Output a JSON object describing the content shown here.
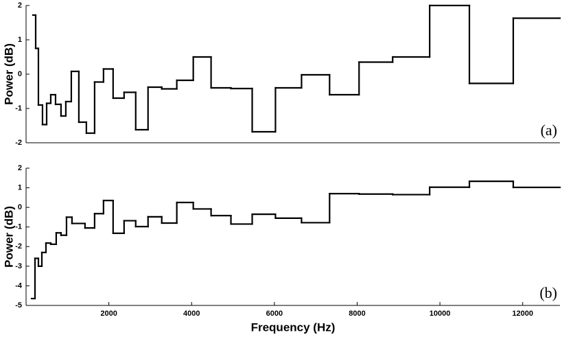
{
  "chart_data": [
    {
      "type": "step",
      "ylabel": "Power (dB)",
      "annotation": "(a)",
      "color": "#000000",
      "x": [
        166,
        232,
        298,
        397,
        497,
        596,
        712,
        844,
        960,
        1093,
        1275,
        1457,
        1656,
        1871,
        2103,
        2368,
        2649,
        2947,
        3278,
        3642,
        4040,
        4470,
        4950,
        5464,
        6026,
        6656,
        7334,
        8046,
        8858,
        9752,
        10712,
        11772
      ],
      "values": [
        1.72,
        0.75,
        -0.9,
        -1.47,
        -0.85,
        -0.6,
        -0.88,
        -1.22,
        -0.8,
        0.08,
        -1.4,
        -1.72,
        -0.23,
        0.15,
        -0.7,
        -0.53,
        -1.62,
        -0.38,
        -0.43,
        -0.18,
        0.5,
        -0.4,
        -0.42,
        -1.68,
        -0.4,
        -0.02,
        -0.6,
        0.35,
        0.5,
        2.0,
        -0.27,
        1.63
      ],
      "xlim": [
        0,
        12900
      ],
      "ylim": [
        -2,
        2
      ],
      "yticks": [
        -2,
        -1,
        0,
        1,
        2
      ]
    },
    {
      "type": "step",
      "ylabel": "Power (dB)",
      "xlabel": "Frequency (Hz)",
      "annotation": "(b)",
      "color": "#000000",
      "x": [
        133,
        215,
        298,
        381,
        480,
        596,
        728,
        844,
        977,
        1109,
        1424,
        1656,
        1871,
        2103,
        2368,
        2649,
        2947,
        3278,
        3642,
        4040,
        4470,
        4950,
        5464,
        6026,
        6656,
        7334,
        8046,
        8858,
        9752,
        10712,
        11772
      ],
      "values": [
        -4.65,
        -2.6,
        -3.0,
        -2.3,
        -1.82,
        -1.88,
        -1.3,
        -1.42,
        -0.5,
        -0.82,
        -1.05,
        -0.32,
        0.35,
        -1.32,
        -0.68,
        -0.98,
        -0.48,
        -0.8,
        0.25,
        -0.08,
        -0.42,
        -0.85,
        -0.35,
        -0.55,
        -0.78,
        0.7,
        0.68,
        0.65,
        1.03,
        1.33,
        1.02
      ],
      "xlim": [
        0,
        12900
      ],
      "ylim": [
        -5,
        2
      ],
      "yticks": [
        -5,
        -4,
        -3,
        -2,
        -1,
        0,
        1,
        2
      ],
      "xticks": [
        2000,
        4000,
        6000,
        8000,
        10000,
        12000
      ]
    }
  ]
}
